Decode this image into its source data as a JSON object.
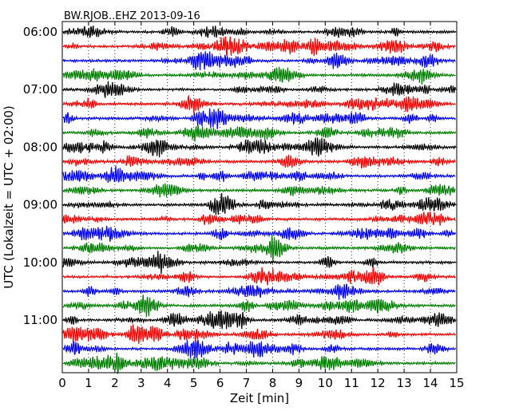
{
  "chart_data": {
    "type": "line",
    "title": "BW.RJOB..EHZ 2013-09-16",
    "xlabel": "Zeit  [min]",
    "ylabel": "UTC (Lokalzeit = UTC + 02:00)",
    "xlim": [
      0,
      15
    ],
    "x_ticks": [
      "0",
      "1",
      "2",
      "3",
      "4",
      "5",
      "6",
      "7",
      "8",
      "9",
      "10",
      "11",
      "12",
      "13",
      "14",
      "15"
    ],
    "y_ticks": [
      "06:00",
      "07:00",
      "08:00",
      "09:00",
      "10:00",
      "11:00"
    ],
    "trace_minutes": 15,
    "trace_count": 24,
    "trace_start": "06:00",
    "trace_colors": [
      "#000000",
      "#ff0000",
      "#0000ff",
      "#008000"
    ],
    "grid": "vertical dotted lines at each minute"
  }
}
